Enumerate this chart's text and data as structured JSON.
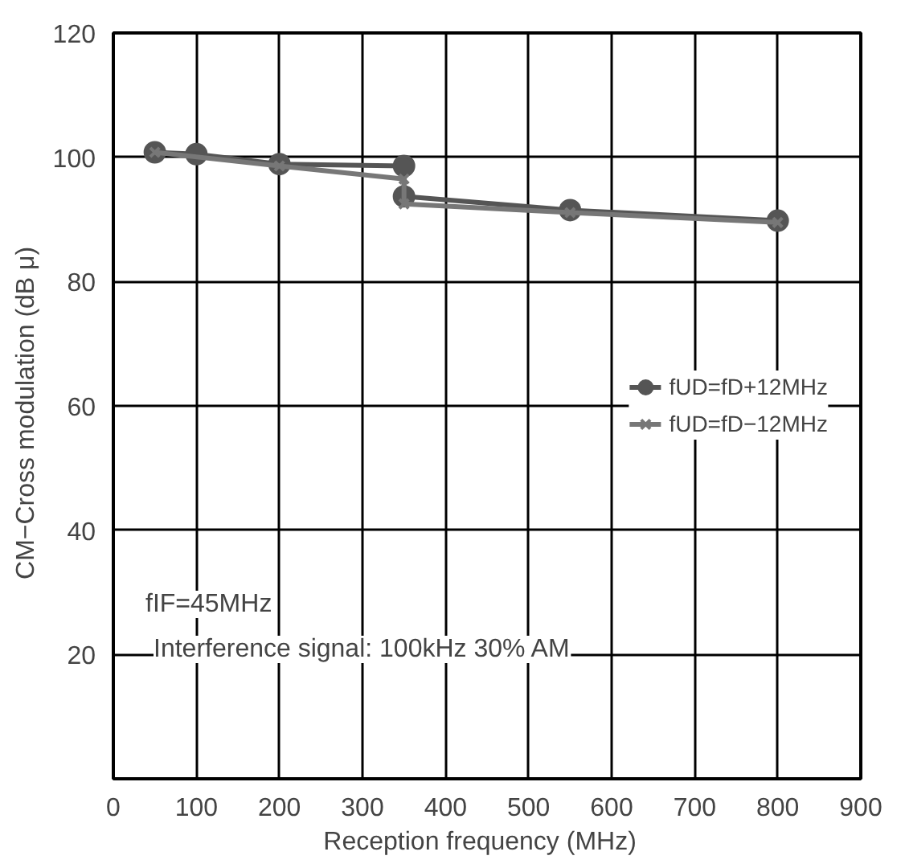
{
  "chart_data": {
    "type": "line",
    "xlabel": "Reception frequency   (MHz)",
    "ylabel": "CM−Cross modulation   (dB μ)",
    "xlim": [
      0,
      900
    ],
    "ylim": [
      0,
      120
    ],
    "xticks": [
      0,
      100,
      200,
      300,
      400,
      500,
      600,
      700,
      800,
      900
    ],
    "yticks": [
      20,
      40,
      60,
      80,
      100,
      120
    ],
    "grid": true,
    "legend": "right",
    "line_style": "solid",
    "series": [
      {
        "name": "fUD=fD+12MHz",
        "color": "#555555",
        "marker": "circle",
        "x": [
          50,
          100,
          200,
          350,
          350,
          550,
          800
        ],
        "values": [
          100.8,
          100.5,
          98.9,
          98.6,
          93.7,
          91.5,
          89.8
        ]
      },
      {
        "name": "fUD=fD−12MHz",
        "color": "#777777",
        "marker": "cross",
        "x": [
          50,
          200,
          350,
          350,
          550,
          800
        ],
        "values": [
          100.8,
          98.6,
          96.5,
          92.5,
          91.1,
          89.5
        ]
      }
    ],
    "annotations": [
      "fIF=45MHz",
      "Interference signal: 100kHz 30% AM"
    ]
  }
}
